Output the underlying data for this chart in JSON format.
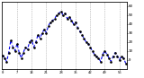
{
  "bg_color": "#ffffff",
  "line_color": "#0000ee",
  "marker_color": "#000000",
  "grid_color": "#999999",
  "ylabel_color": "#000000",
  "y_values": [
    5,
    2,
    -2,
    8,
    22,
    14,
    10,
    18,
    8,
    2,
    8,
    14,
    12,
    20,
    22,
    14,
    20,
    28,
    24,
    30,
    34,
    30,
    38,
    42,
    44,
    46,
    50,
    52,
    54,
    50,
    52,
    46,
    48,
    44,
    40,
    42,
    36,
    32,
    28,
    24,
    20,
    18,
    14,
    10,
    6,
    4,
    2,
    -2,
    6,
    10,
    6,
    2,
    -2,
    4,
    8,
    4,
    0,
    4,
    2,
    -4
  ],
  "ylim": [
    -10,
    65
  ],
  "right_yticks": [
    0,
    10,
    20,
    30,
    40,
    50,
    60
  ],
  "right_ytick_labels": [
    "0",
    "10",
    "20",
    "30",
    "40",
    "50",
    "60"
  ],
  "vgrid_positions": [
    7,
    14,
    21,
    28,
    35,
    42,
    49,
    56
  ],
  "x_tick_interval": 7,
  "figsize": [
    1.6,
    0.87
  ],
  "dpi": 100,
  "line_width": 0.8,
  "marker_size": 1.8
}
